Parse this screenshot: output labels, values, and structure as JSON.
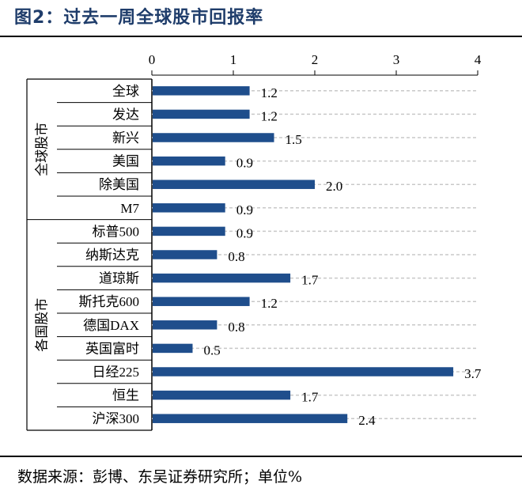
{
  "figure": {
    "title": "图2：过去一周全球股市回报率",
    "source": "数据来源：彭博、东吴证券研究所；单位%"
  },
  "chart_data": {
    "type": "bar",
    "orientation": "horizontal",
    "xlim": [
      0,
      4
    ],
    "x_ticks": [
      "0",
      "1",
      "2",
      "3",
      "4"
    ],
    "bar_color": "#1f4e8c",
    "grid": "dashed-horizontal",
    "groups": [
      {
        "label": "全球股市",
        "categories": [
          "全球",
          "发达",
          "新兴",
          "美国",
          "除美国",
          "M7"
        ],
        "values": [
          1.2,
          1.2,
          1.5,
          0.9,
          2.0,
          0.9
        ],
        "value_labels": [
          "1.2",
          "1.2",
          "1.5",
          "0.9",
          "2.0",
          "0.9"
        ]
      },
      {
        "label": "各国股市",
        "categories": [
          "标普500",
          "纳斯达克",
          "道琼斯",
          "斯托克600",
          "德国DAX",
          "英国富时",
          "日经225",
          "恒生",
          "沪深300"
        ],
        "values": [
          0.9,
          0.8,
          1.7,
          1.2,
          0.8,
          0.5,
          3.7,
          1.7,
          2.4
        ],
        "value_labels": [
          "0.9",
          "0.8",
          "1.7",
          "1.2",
          "0.8",
          "0.5",
          "3.7",
          "1.7",
          "2.4"
        ]
      }
    ]
  }
}
